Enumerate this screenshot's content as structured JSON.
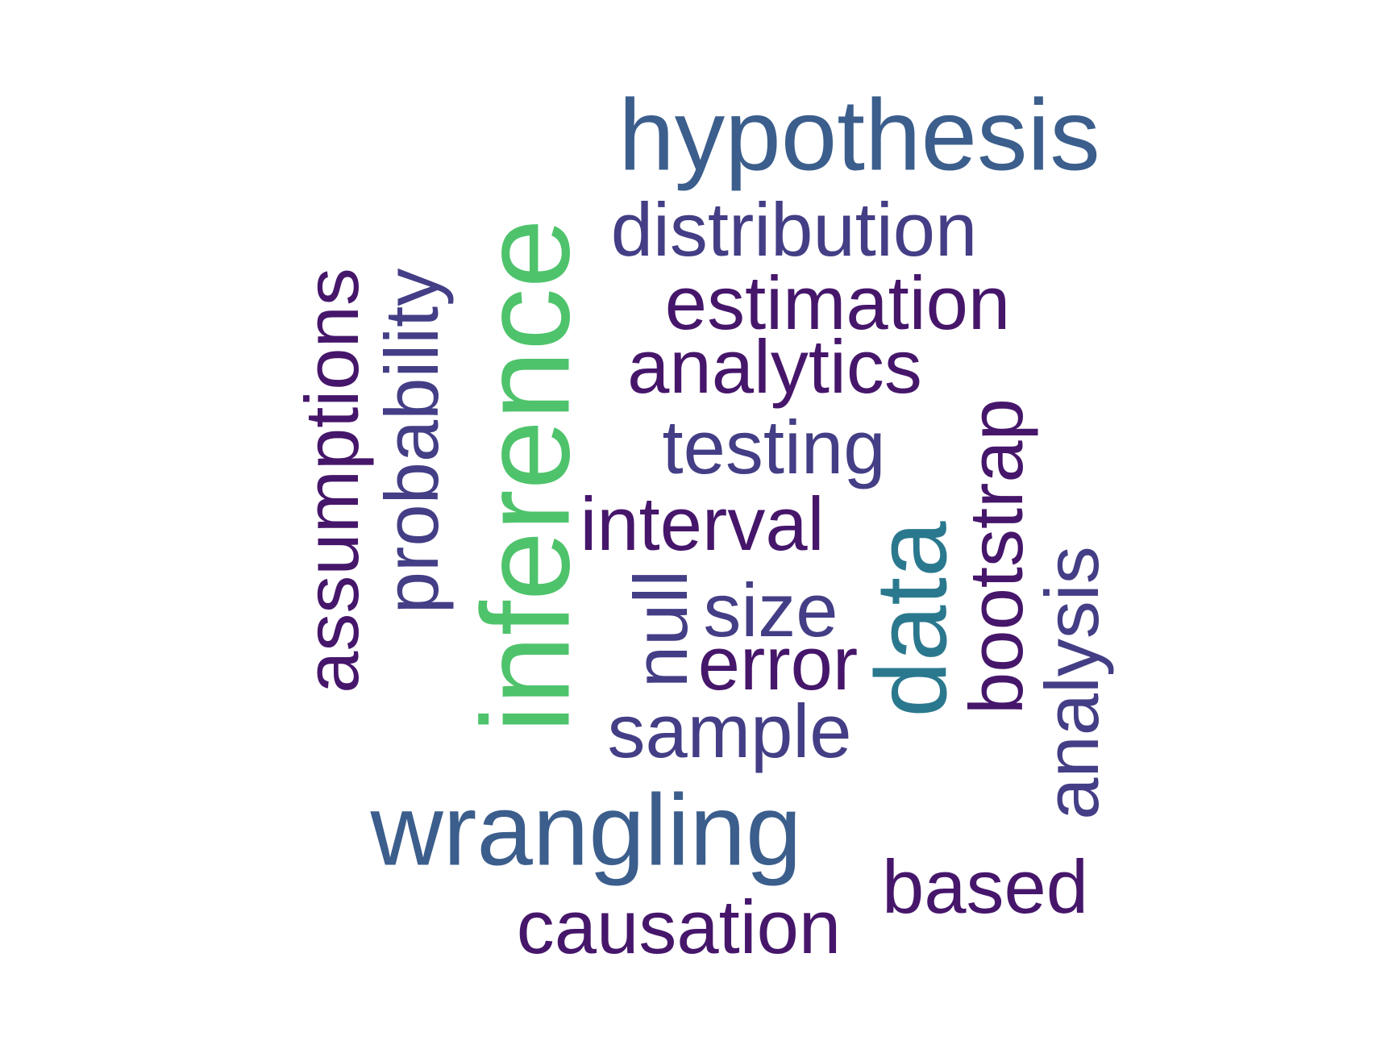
{
  "words": {
    "hypothesis": {
      "text": "hypothesis",
      "color": "#3b5e8c"
    },
    "inference": {
      "text": "inference",
      "color": "#4ec36b"
    },
    "wrangling": {
      "text": "wrangling",
      "color": "#3b5e8c"
    },
    "data": {
      "text": "data",
      "color": "#2a788e"
    },
    "distribution": {
      "text": "distribution",
      "color": "#433e85"
    },
    "estimation": {
      "text": "estimation",
      "color": "#46166b"
    },
    "analytics": {
      "text": "analytics",
      "color": "#46166b"
    },
    "testing": {
      "text": "testing",
      "color": "#433e85"
    },
    "interval": {
      "text": "interval",
      "color": "#46166b"
    },
    "size": {
      "text": "size",
      "color": "#433e85"
    },
    "error": {
      "text": "error",
      "color": "#46166b"
    },
    "sample": {
      "text": "sample",
      "color": "#433e85"
    },
    "causation": {
      "text": "causation",
      "color": "#46166b"
    },
    "based": {
      "text": "based",
      "color": "#46166b"
    },
    "assumptions": {
      "text": "assumptions",
      "color": "#46166b"
    },
    "probability": {
      "text": "probability",
      "color": "#433e85"
    },
    "null": {
      "text": "null",
      "color": "#433e85"
    },
    "bootstrap": {
      "text": "bootstrap",
      "color": "#46166b"
    },
    "analysis": {
      "text": "analysis",
      "color": "#433e85"
    }
  }
}
